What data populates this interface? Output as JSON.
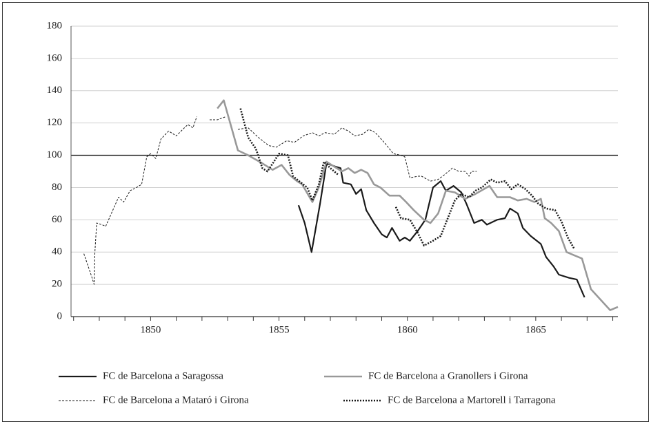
{
  "chart_data": {
    "type": "line",
    "xlim": [
      1846.9,
      1868.2
    ],
    "xticks": [
      1850,
      1855,
      1860,
      1865
    ],
    "x_minor_ticks": [
      1847,
      1848,
      1849,
      1850,
      1851,
      1852,
      1853,
      1854,
      1855,
      1856,
      1857,
      1858,
      1859,
      1860,
      1861,
      1862,
      1863,
      1864,
      1865,
      1866,
      1867,
      1868
    ],
    "ylim": [
      0,
      180
    ],
    "yticks": [
      0,
      20,
      40,
      60,
      80,
      100,
      120,
      140,
      160,
      180
    ],
    "grid": true,
    "reference_line": 100,
    "legend": "bottom",
    "series": [
      {
        "name": "FC de Barcelona a Saragossa",
        "color": "#1a1a1a",
        "width": 2.2,
        "dash": "none",
        "x": [
          1855.76,
          1856.0,
          1856.27,
          1856.6,
          1856.85,
          1857.2,
          1857.4,
          1857.5,
          1857.8,
          1858.0,
          1858.2,
          1858.4,
          1858.7,
          1859.0,
          1859.2,
          1859.4,
          1859.7,
          1859.9,
          1860.1,
          1860.4,
          1860.7,
          1861.0,
          1861.3,
          1861.5,
          1861.8,
          1862.1,
          1862.3,
          1862.6,
          1862.9,
          1863.1,
          1863.5,
          1863.8,
          1864.0,
          1864.3,
          1864.5,
          1864.8,
          1865.2,
          1865.4,
          1865.7,
          1865.9,
          1866.3,
          1866.6,
          1866.9
        ],
        "values": [
          69,
          58,
          40,
          70,
          95,
          93,
          92,
          83,
          82,
          76,
          79,
          66,
          58,
          51,
          49,
          55,
          47,
          49,
          47,
          53,
          60,
          80,
          84,
          78,
          81,
          77,
          70,
          58,
          60,
          57,
          60,
          61,
          67,
          64,
          55,
          50,
          45,
          37,
          31,
          26,
          24,
          23,
          12
        ]
      },
      {
        "name": "FC de Barcelona a Granollers i Girona",
        "color": "#999999",
        "width": 2.6,
        "dash": "none",
        "x": [
          1852.6,
          1852.85,
          1853.4,
          1853.8,
          1854.35,
          1854.75,
          1855.1,
          1855.4,
          1855.7,
          1855.9,
          1856.3,
          1856.55,
          1856.85,
          1857.15,
          1857.45,
          1857.7,
          1857.95,
          1858.2,
          1858.45,
          1858.7,
          1858.95,
          1859.3,
          1859.7,
          1859.95,
          1860.25,
          1860.65,
          1860.9,
          1861.2,
          1861.5,
          1861.85,
          1862.25,
          1862.65,
          1863.2,
          1863.5,
          1864.0,
          1864.3,
          1864.65,
          1864.95,
          1865.2,
          1865.35,
          1865.6,
          1865.9,
          1866.2,
          1866.5,
          1866.8,
          1867.15,
          1867.9,
          1868.2
        ],
        "values": [
          129,
          134,
          103,
          100,
          95,
          91,
          94,
          88,
          84,
          82,
          71,
          80,
          96,
          93,
          90,
          92,
          89,
          91,
          89,
          82,
          80,
          75,
          75,
          71,
          66,
          60,
          58,
          64,
          78,
          77,
          73,
          76,
          81,
          74,
          74,
          72,
          73,
          71,
          73,
          61,
          58,
          53,
          40,
          38,
          36,
          17,
          4,
          6
        ]
      },
      {
        "name": "FC de Barcelona a Mataró i Girona",
        "color": "#1a1a1a",
        "width": 1,
        "dash": "3,2",
        "x": [
          1847.4,
          1847.7,
          1847.8,
          1847.83,
          1847.9,
          1848.1,
          1848.25,
          1848.5,
          1848.75,
          1848.95,
          1849.2,
          1849.45,
          1849.65,
          1849.85,
          1850.0,
          1850.2,
          1850.4,
          1850.7,
          1851.0,
          1851.25,
          1851.45,
          1851.65,
          1851.8,
          null,
          1852.3,
          1852.6,
          1852.95,
          null,
          1853.4,
          1853.8,
          1854.2,
          1854.6,
          1854.9,
          1855.3,
          1855.6,
          1855.95,
          1856.3,
          1856.55,
          1856.8,
          1857.15,
          1857.45,
          1857.7,
          1857.95,
          1858.25,
          1858.5,
          1858.75,
          1859.15,
          1859.45,
          1859.75,
          1859.9,
          1860.1,
          1860.4,
          1860.55,
          1860.9,
          1861.2,
          1861.45,
          1861.75,
          1862.0,
          1862.25,
          1862.4,
          1862.5,
          1862.7
        ],
        "values": [
          39,
          25,
          20,
          40,
          58,
          57,
          56,
          65,
          74,
          71,
          78,
          80,
          82,
          99,
          101,
          98,
          110,
          115,
          112,
          116,
          119,
          117,
          124,
          null,
          122,
          122,
          124,
          null,
          116,
          117,
          111,
          106,
          105,
          109,
          108,
          112,
          114,
          112,
          114,
          113,
          117,
          115,
          112,
          113,
          116,
          114,
          107,
          101,
          100,
          99,
          86,
          87,
          87,
          84,
          85,
          88,
          92,
          90,
          90,
          87,
          90,
          90
        ]
      },
      {
        "name": "FC de Barcelona a Martorell i Tarragona",
        "color": "#1a1a1a",
        "width": 2.6,
        "dash": "2,2",
        "x": [
          1853.5,
          1853.8,
          1854.1,
          1854.35,
          1854.55,
          1854.8,
          1855.0,
          1855.35,
          1855.55,
          1855.7,
          1856.1,
          1856.3,
          1856.55,
          1856.75,
          1857.0,
          1857.3,
          null,
          1859.55,
          1859.75,
          1860.1,
          1860.4,
          1860.65,
          1861.0,
          1861.3,
          1861.6,
          1861.85,
          1862.1,
          1862.4,
          1862.65,
          1862.9,
          1863.25,
          1863.5,
          1863.8,
          1864.05,
          1864.3,
          1864.6,
          1864.85,
          1865.1,
          1865.4,
          1865.75,
          1866.0,
          1866.25,
          1866.5
        ],
        "values": [
          129,
          111,
          104,
          92,
          90,
          96,
          101,
          100,
          87,
          85,
          80,
          72,
          82,
          96,
          92,
          88,
          null,
          68,
          61,
          60,
          52,
          44,
          47,
          50,
          62,
          72,
          76,
          74,
          78,
          80,
          85,
          83,
          84,
          79,
          82,
          79,
          75,
          70,
          67,
          66,
          59,
          49,
          42
        ]
      }
    ]
  }
}
